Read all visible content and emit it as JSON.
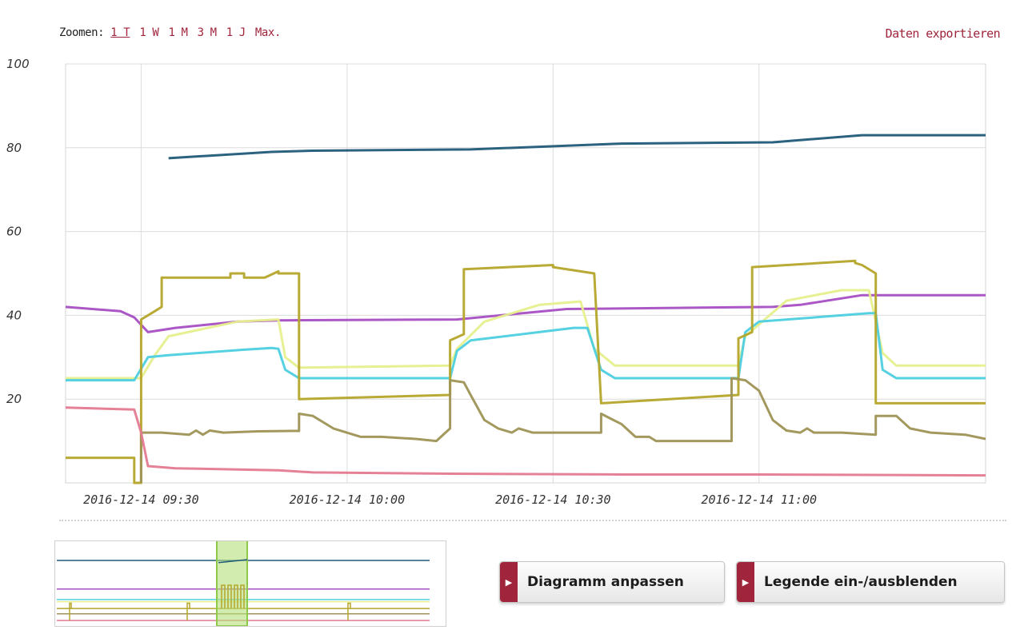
{
  "toolbar": {
    "zoom_label": "Zoomen:",
    "zoom_options": [
      "1 T",
      "1 W",
      "1 M",
      "3 M",
      "1 J",
      "Max."
    ],
    "zoom_active": "1 T",
    "export_label": "Daten exportieren"
  },
  "buttons": {
    "adjust_label": "Diagramm anpassen",
    "legend_label": "Legende ein-/ausblenden"
  },
  "colors": {
    "accent": "#a0253c",
    "navigator_selection": "#b4e07a"
  },
  "chart_data": {
    "type": "line",
    "x_unit": "minutes",
    "xlim": [
      "2016-12-14 09:19",
      "2016-12-14 11:33"
    ],
    "ylim": [
      0,
      100
    ],
    "yticks": [
      20,
      40,
      60,
      80,
      100
    ],
    "xticks": [
      "2016-12-14 09:30",
      "2016-12-14 10:00",
      "2016-12-14 10:30",
      "2016-12-14 11:00"
    ],
    "grid": true,
    "legend": "hidden",
    "series": [
      {
        "color": "#1f5a78",
        "points": [
          [
            "2016-12-14 09:34",
            77.5
          ],
          [
            "2016-12-14 09:49",
            79
          ],
          [
            "2016-12-14 09:55",
            79.3
          ],
          [
            "2016-12-14 10:18",
            79.6
          ],
          [
            "2016-12-14 10:40",
            81
          ],
          [
            "2016-12-14 11:02",
            81.3
          ],
          [
            "2016-12-14 11:15",
            83
          ],
          [
            "2016-12-14 11:33",
            83
          ]
        ]
      },
      {
        "color": "#a64fc3",
        "points": [
          [
            "2016-12-14 09:19",
            42
          ],
          [
            "2016-12-14 09:27",
            41
          ],
          [
            "2016-12-14 09:29",
            39.5
          ],
          [
            "2016-12-14 09:31",
            36
          ],
          [
            "2016-12-14 09:35",
            37
          ],
          [
            "2016-12-14 09:44",
            38.5
          ],
          [
            "2016-12-14 09:50",
            38.8
          ],
          [
            "2016-12-14 10:16",
            39
          ],
          [
            "2016-12-14 10:32",
            41.5
          ],
          [
            "2016-12-14 11:02",
            42
          ],
          [
            "2016-12-14 11:06",
            42.5
          ],
          [
            "2016-12-14 11:15",
            44.8
          ],
          [
            "2016-12-14 11:33",
            44.8
          ]
        ]
      },
      {
        "color": "#e6ef8c",
        "points": [
          [
            "2016-12-14 09:19",
            25
          ],
          [
            "2016-12-14 09:30",
            25
          ],
          [
            "2016-12-14 09:32",
            30.5
          ],
          [
            "2016-12-14 09:34",
            35
          ],
          [
            "2016-12-14 09:44",
            38.5
          ],
          [
            "2016-12-14 09:50",
            39
          ],
          [
            "2016-12-14 09:51",
            30
          ],
          [
            "2016-12-14 09:53",
            27.5
          ],
          [
            "2016-12-14 10:15",
            28
          ],
          [
            "2016-12-14 10:16",
            32
          ],
          [
            "2016-12-14 10:20",
            38.5
          ],
          [
            "2016-12-14 10:28",
            42.5
          ],
          [
            "2016-12-14 10:34",
            43.3
          ],
          [
            "2016-12-14 10:36",
            32
          ],
          [
            "2016-12-14 10:39",
            28
          ],
          [
            "2016-12-14 10:57",
            28
          ],
          [
            "2016-12-14 10:58",
            35
          ],
          [
            "2016-12-14 11:04",
            43.5
          ],
          [
            "2016-12-14 11:12",
            46
          ],
          [
            "2016-12-14 11:16",
            46
          ],
          [
            "2016-12-14 11:18",
            31
          ],
          [
            "2016-12-14 11:20",
            28
          ],
          [
            "2016-12-14 11:33",
            28
          ]
        ]
      },
      {
        "color": "#4ccfe0",
        "points": [
          [
            "2016-12-14 09:19",
            24.5
          ],
          [
            "2016-12-14 09:29",
            24.5
          ],
          [
            "2016-12-14 09:31",
            30
          ],
          [
            "2016-12-14 09:34",
            30.5
          ],
          [
            "2016-12-14 09:45",
            31.8
          ],
          [
            "2016-12-14 09:49",
            32.2
          ],
          [
            "2016-12-14 09:50",
            32
          ],
          [
            "2016-12-14 09:51",
            27
          ],
          [
            "2016-12-14 09:53",
            25
          ],
          [
            "2016-12-14 10:15",
            25
          ],
          [
            "2016-12-14 10:16",
            31.5
          ],
          [
            "2016-12-14 10:18",
            34
          ],
          [
            "2016-12-14 10:33",
            37
          ],
          [
            "2016-12-14 10:35",
            37
          ],
          [
            "2016-12-14 10:37",
            27
          ],
          [
            "2016-12-14 10:39",
            25
          ],
          [
            "2016-12-14 10:57",
            25
          ],
          [
            "2016-12-14 10:58",
            36
          ],
          [
            "2016-12-14 11:00",
            38.5
          ],
          [
            "2016-12-14 11:16",
            40.5
          ],
          [
            "2016-12-14 11:17",
            40.5
          ],
          [
            "2016-12-14 11:18",
            27
          ],
          [
            "2016-12-14 11:20",
            25
          ],
          [
            "2016-12-14 11:33",
            25
          ]
        ]
      },
      {
        "color": "#b5a52a",
        "points": [
          [
            "2016-12-14 09:19",
            6
          ],
          [
            "2016-12-14 09:29",
            6
          ],
          [
            "2016-12-14 09:29",
            0
          ],
          [
            "2016-12-14 09:30",
            0
          ],
          [
            "2016-12-14 09:30",
            39
          ],
          [
            "2016-12-14 09:32",
            41
          ],
          [
            "2016-12-14 09:33",
            42
          ],
          [
            "2016-12-14 09:33",
            49
          ],
          [
            "2016-12-14 09:43",
            49
          ],
          [
            "2016-12-14 09:43",
            50
          ],
          [
            "2016-12-14 09:45",
            50
          ],
          [
            "2016-12-14 09:45",
            49
          ],
          [
            "2016-12-14 09:48",
            49
          ],
          [
            "2016-12-14 09:50",
            50.5
          ],
          [
            "2016-12-14 09:50",
            50
          ],
          [
            "2016-12-14 09:53",
            50
          ],
          [
            "2016-12-14 09:53",
            20
          ],
          [
            "2016-12-14 10:15",
            21
          ],
          [
            "2016-12-14 10:15",
            34
          ],
          [
            "2016-12-14 10:17",
            35.5
          ],
          [
            "2016-12-14 10:17",
            51
          ],
          [
            "2016-12-14 10:30",
            52
          ],
          [
            "2016-12-14 10:30",
            51.5
          ],
          [
            "2016-12-14 10:36",
            50
          ],
          [
            "2016-12-14 10:37",
            19
          ],
          [
            "2016-12-14 10:57",
            21
          ],
          [
            "2016-12-14 10:57",
            34.5
          ],
          [
            "2016-12-14 10:59",
            36
          ],
          [
            "2016-12-14 10:59",
            51.5
          ],
          [
            "2016-12-14 11:14",
            53
          ],
          [
            "2016-12-14 11:14",
            52.5
          ],
          [
            "2016-12-14 11:15",
            52
          ],
          [
            "2016-12-14 11:17",
            50
          ],
          [
            "2016-12-14 11:17",
            19
          ],
          [
            "2016-12-14 11:33",
            19
          ]
        ]
      },
      {
        "color": "#9e9455",
        "points": [
          [
            "2016-12-14 09:30",
            0
          ],
          [
            "2016-12-14 09:30",
            12
          ],
          [
            "2016-12-14 09:33",
            12
          ],
          [
            "2016-12-14 09:37",
            11.5
          ],
          [
            "2016-12-14 09:38",
            12.5
          ],
          [
            "2016-12-14 09:39",
            11.5
          ],
          [
            "2016-12-14 09:40",
            12.5
          ],
          [
            "2016-12-14 09:42",
            12
          ],
          [
            "2016-12-14 09:47",
            12.3
          ],
          [
            "2016-12-14 09:52",
            12.4
          ],
          [
            "2016-12-14 09:53",
            12.4
          ],
          [
            "2016-12-14 09:53",
            16.5
          ],
          [
            "2016-12-14 09:55",
            16
          ],
          [
            "2016-12-14 09:58",
            13
          ],
          [
            "2016-12-14 10:02",
            11
          ],
          [
            "2016-12-14 10:05",
            11
          ],
          [
            "2016-12-14 10:10",
            10.5
          ],
          [
            "2016-12-14 10:13",
            10
          ],
          [
            "2016-12-14 10:15",
            13
          ],
          [
            "2016-12-14 10:15",
            24.5
          ],
          [
            "2016-12-14 10:17",
            24
          ],
          [
            "2016-12-14 10:18",
            21
          ],
          [
            "2016-12-14 10:20",
            15
          ],
          [
            "2016-12-14 10:22",
            13
          ],
          [
            "2016-12-14 10:24",
            12
          ],
          [
            "2016-12-14 10:25",
            13
          ],
          [
            "2016-12-14 10:27",
            12
          ],
          [
            "2016-12-14 10:35",
            12
          ],
          [
            "2016-12-14 10:37",
            12
          ],
          [
            "2016-12-14 10:37",
            16.5
          ],
          [
            "2016-12-14 10:40",
            14
          ],
          [
            "2016-12-14 10:42",
            11
          ],
          [
            "2016-12-14 10:44",
            11
          ],
          [
            "2016-12-14 10:45",
            10
          ],
          [
            "2016-12-14 10:50",
            10
          ],
          [
            "2016-12-14 10:56",
            10
          ],
          [
            "2016-12-14 10:56",
            25
          ],
          [
            "2016-12-14 10:58",
            24.5
          ],
          [
            "2016-12-14 11:00",
            22
          ],
          [
            "2016-12-14 11:02",
            15
          ],
          [
            "2016-12-14 11:04",
            12.5
          ],
          [
            "2016-12-14 11:06",
            12
          ],
          [
            "2016-12-14 11:07",
            13
          ],
          [
            "2016-12-14 11:08",
            12
          ],
          [
            "2016-12-14 11:12",
            12
          ],
          [
            "2016-12-14 11:17",
            11.5
          ],
          [
            "2016-12-14 11:17",
            16
          ],
          [
            "2016-12-14 11:20",
            16
          ],
          [
            "2016-12-14 11:22",
            13
          ],
          [
            "2016-12-14 11:25",
            12
          ],
          [
            "2016-12-14 11:30",
            11.5
          ],
          [
            "2016-12-14 11:33",
            10.5
          ]
        ]
      },
      {
        "color": "#e47a91",
        "points": [
          [
            "2016-12-14 09:19",
            18
          ],
          [
            "2016-12-14 09:29",
            17.5
          ],
          [
            "2016-12-14 09:30",
            12
          ],
          [
            "2016-12-14 09:31",
            4
          ],
          [
            "2016-12-14 09:35",
            3.5
          ],
          [
            "2016-12-14 09:50",
            3
          ],
          [
            "2016-12-14 09:55",
            2.5
          ],
          [
            "2016-12-14 10:15",
            2.2
          ],
          [
            "2016-12-14 10:40",
            2
          ],
          [
            "2016-12-14 11:00",
            2
          ],
          [
            "2016-12-14 11:33",
            1.8
          ]
        ]
      }
    ]
  }
}
